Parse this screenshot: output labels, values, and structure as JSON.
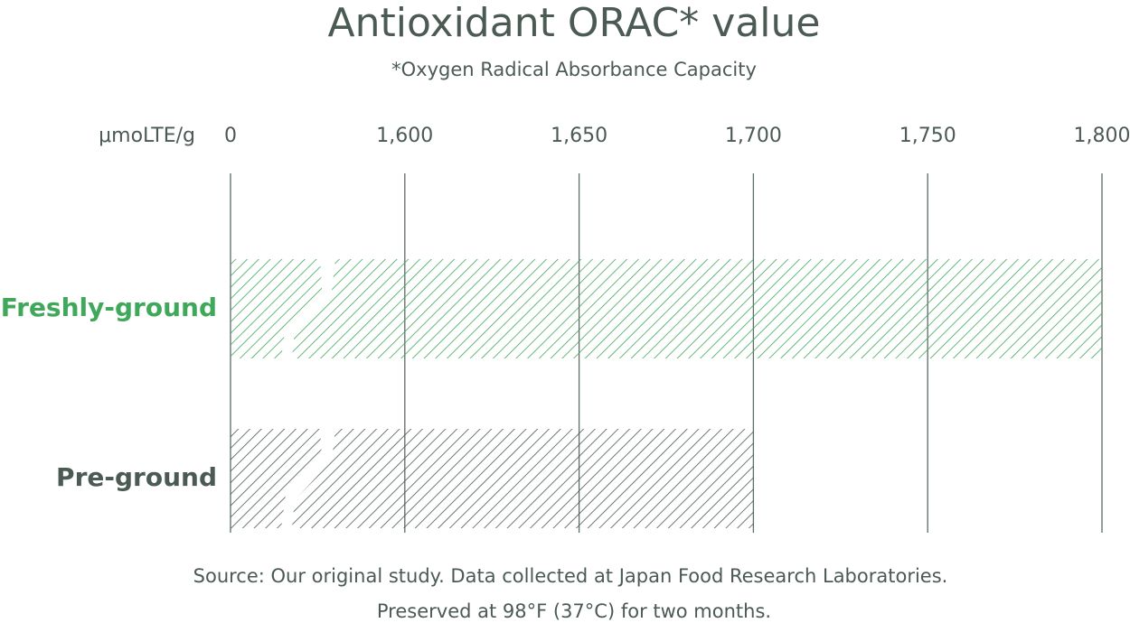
{
  "chart_data": {
    "type": "bar",
    "orientation": "horizontal",
    "title": "Antioxidant ORAC* value",
    "subtitle": "*Oxygen Radical Absorbance Capacity",
    "x_label": "μmoLTE/g",
    "categories": [
      "Freshly-ground",
      "Pre-ground"
    ],
    "values": [
      1800,
      1700
    ],
    "colors": [
      "#3fa85a",
      "#4b5a53"
    ],
    "xlim": [
      0,
      1800
    ],
    "xticks": [
      0,
      {
        "value": 1600,
        "label": "1,600"
      },
      {
        "value": 1650,
        "label": "1,650"
      },
      {
        "value": 1700,
        "label": "1,700"
      },
      {
        "value": 1750,
        "label": "1,750"
      },
      {
        "value": 1800,
        "label": "1,800"
      }
    ],
    "grid": true,
    "footnotes": [
      "Source: Our original study. Data collected at Japan Food Research Laboratories.",
      "Preserved at 98°F (37°C) for two months."
    ]
  }
}
